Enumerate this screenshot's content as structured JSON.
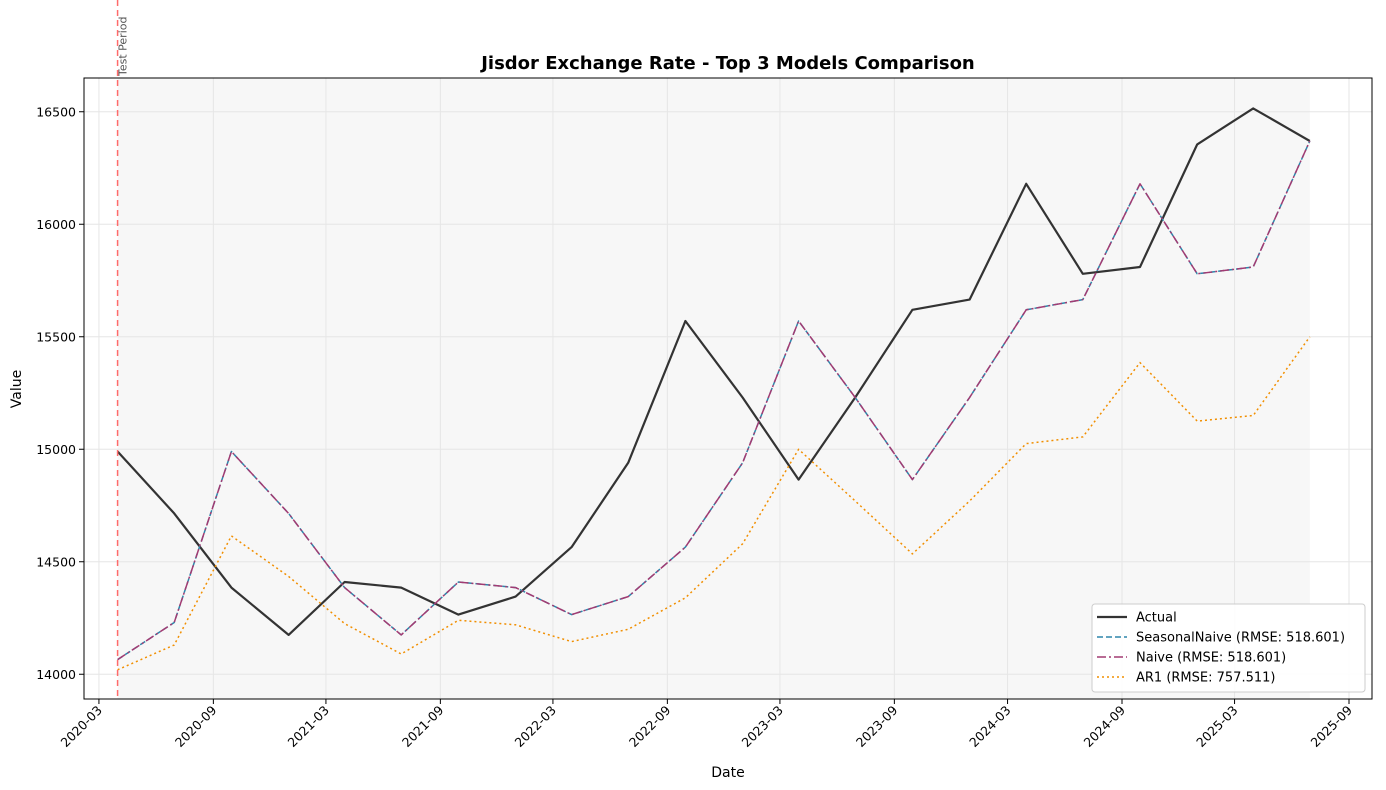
{
  "chart_data": {
    "type": "line",
    "title": "Jisdor Exchange Rate - Top 3 Models Comparison",
    "xlabel": "Date",
    "ylabel": "Value",
    "x_ticks": [
      "2020-03",
      "2020-09",
      "2021-03",
      "2021-09",
      "2022-03",
      "2022-09",
      "2023-03",
      "2023-09",
      "2024-03",
      "2024-09",
      "2025-03",
      "2025-09"
    ],
    "y_ticks": [
      14000,
      14500,
      15000,
      15500,
      16000,
      16500
    ],
    "xlim": [
      "2020-02-06",
      "2025-10-08"
    ],
    "ylim": [
      13890,
      16650
    ],
    "grid": true,
    "legend_position": "lower-right",
    "test_period": {
      "start": "2020-03-31",
      "end": "2025-06-30",
      "label": "Test Period",
      "line_color": "#ff6b6b",
      "shade_color": "#f7f7f7"
    },
    "x": [
      "2020-03-31",
      "2020-06-30",
      "2020-09-30",
      "2020-12-31",
      "2021-03-31",
      "2021-06-30",
      "2021-09-30",
      "2021-12-31",
      "2022-03-31",
      "2022-06-30",
      "2022-09-30",
      "2022-12-31",
      "2023-03-31",
      "2023-06-30",
      "2023-09-30",
      "2023-12-31",
      "2024-03-31",
      "2024-06-30",
      "2024-09-30",
      "2024-12-31",
      "2025-03-31",
      "2025-06-30"
    ],
    "series": [
      {
        "name": "Actual",
        "color": "#333333",
        "style": "solid",
        "values": [
          14990,
          14715,
          14385,
          14175,
          14410,
          14385,
          14265,
          14345,
          14565,
          14940,
          15570,
          15230,
          14865,
          15230,
          15620,
          15665,
          16180,
          15780,
          15810,
          16355,
          16515,
          16370
        ]
      },
      {
        "name": "SeasonalNaive (RMSE: 518.601)",
        "color": "#2e86ab",
        "style": "dashed",
        "values": [
          14065,
          14230,
          14990,
          14715,
          14385,
          14175,
          14410,
          14385,
          14265,
          14345,
          14565,
          14940,
          15570,
          15230,
          14865,
          15230,
          15620,
          15665,
          16180,
          15780,
          15810,
          16370
        ]
      },
      {
        "name": "Naive (RMSE: 518.601)",
        "color": "#a23b72",
        "style": "dashdot",
        "values": [
          14065,
          14230,
          14990,
          14715,
          14385,
          14175,
          14410,
          14385,
          14265,
          14345,
          14565,
          14940,
          15570,
          15230,
          14865,
          15230,
          15620,
          15665,
          16180,
          15780,
          15810,
          16370
        ]
      },
      {
        "name": "AR1 (RMSE: 757.511)",
        "color": "#f18f01",
        "style": "dotted",
        "values": [
          14020,
          14130,
          14615,
          14435,
          14225,
          14090,
          14240,
          14220,
          14145,
          14200,
          14340,
          14580,
          15000,
          14770,
          14535,
          14770,
          15025,
          15055,
          15385,
          15125,
          15150,
          15500
        ]
      }
    ]
  }
}
